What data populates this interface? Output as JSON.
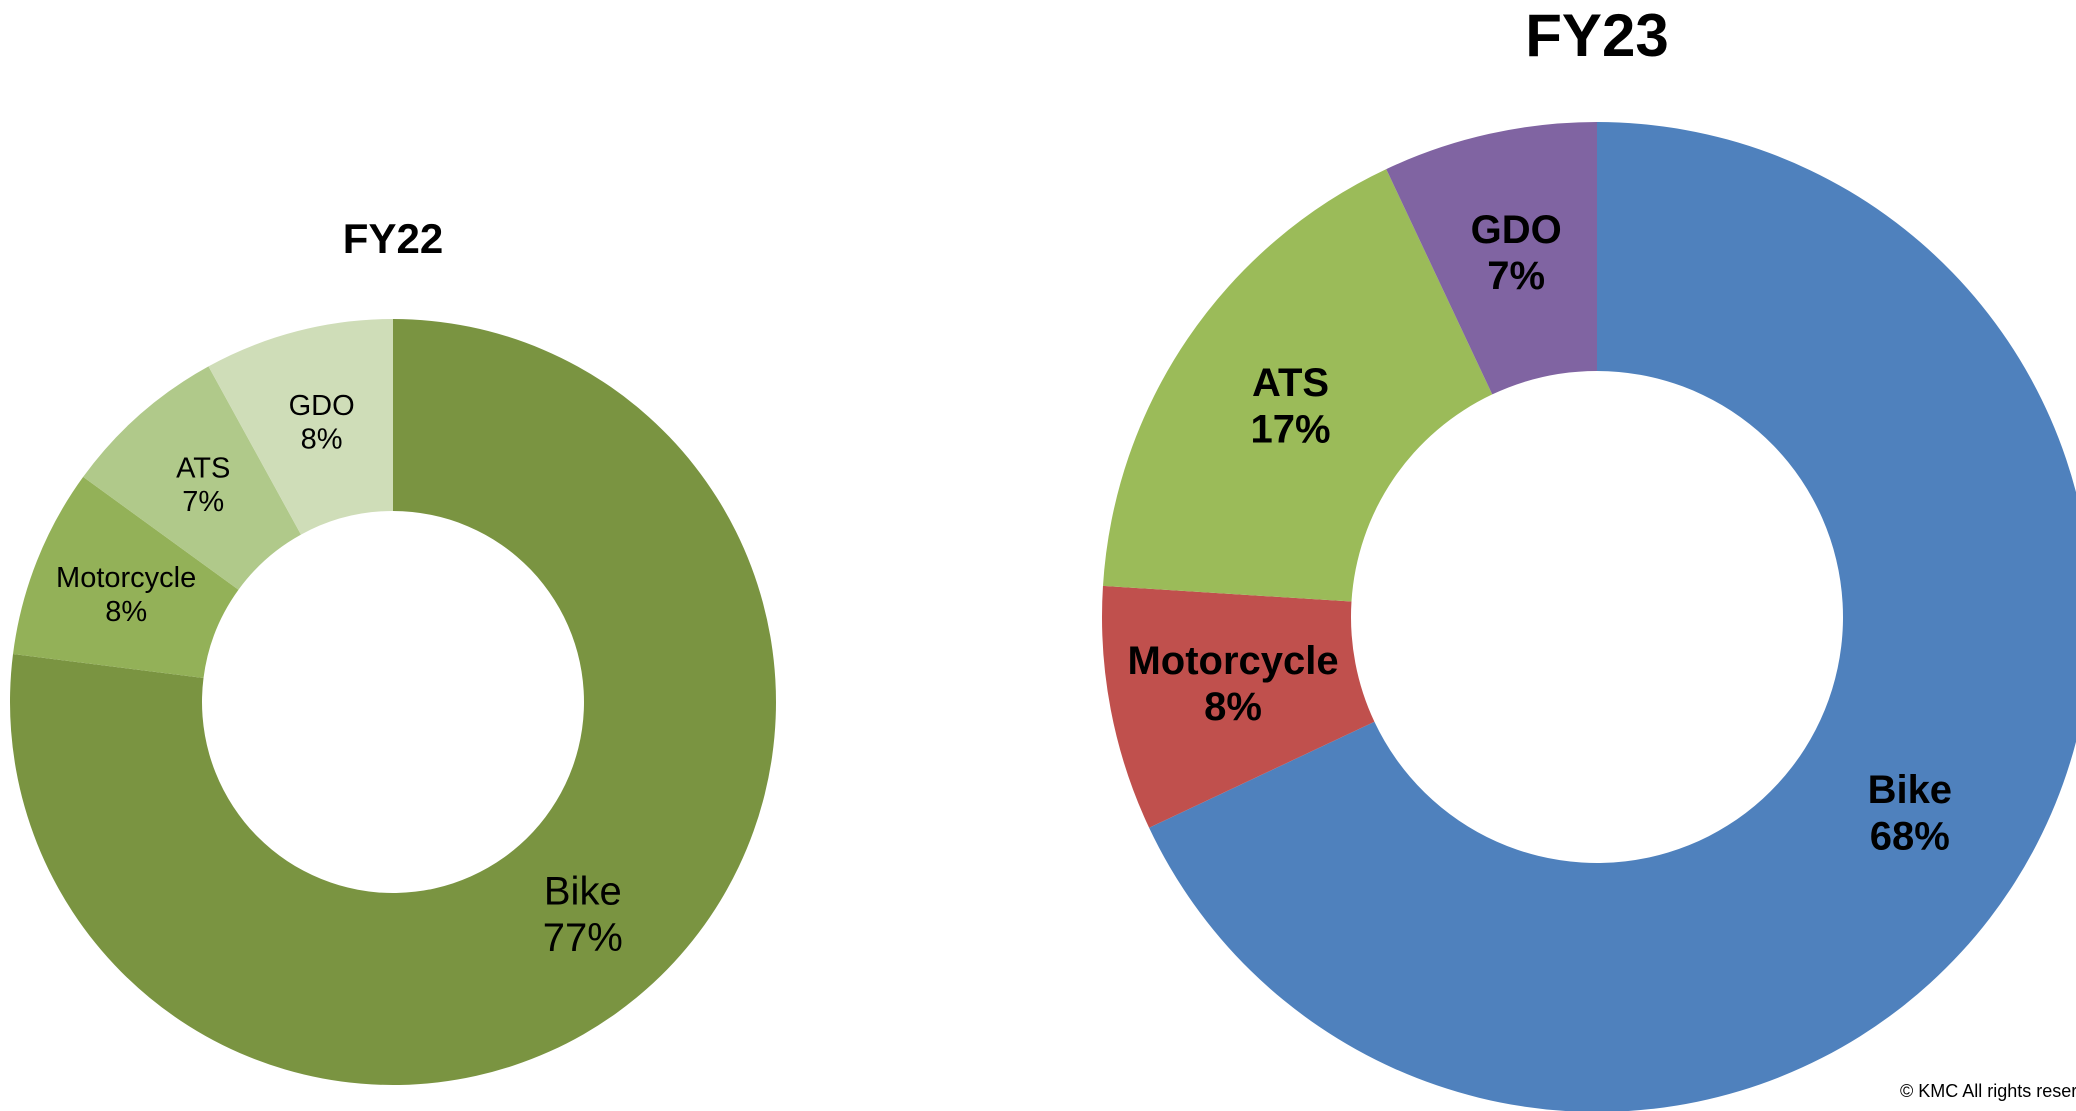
{
  "chart_data": [
    {
      "type": "pie",
      "title": "FY22",
      "categories": [
        "Bike",
        "Motorcycle",
        "ATS",
        "GDO"
      ],
      "values": [
        77,
        8,
        7,
        8
      ],
      "value_labels": [
        "77%",
        "8%",
        "7%",
        "8%"
      ],
      "colors": [
        "#7a9441",
        "#93b158",
        "#b0c98a",
        "#cfddb8"
      ]
    },
    {
      "type": "pie",
      "title": "FY23",
      "categories": [
        "Bike",
        "Motorcycle",
        "ATS",
        "GDO"
      ],
      "values": [
        68,
        8,
        17,
        7
      ],
      "value_labels": [
        "68%",
        "8%",
        "17%",
        "7%"
      ],
      "colors": [
        "#4f81bd",
        "#c0504d",
        "#9bbb59",
        "#8064a2"
      ]
    }
  ],
  "footer": "© KMC All rights reserved"
}
